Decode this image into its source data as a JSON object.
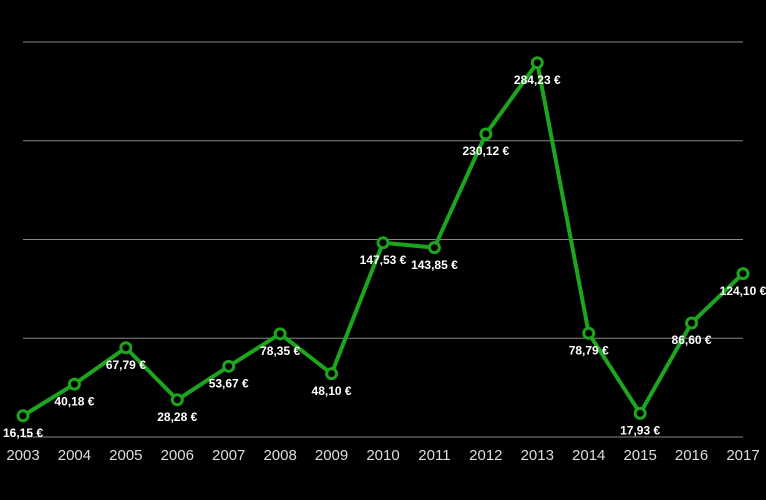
{
  "chart_data": {
    "type": "line",
    "categories": [
      "2003",
      "2004",
      "2005",
      "2006",
      "2007",
      "2008",
      "2009",
      "2010",
      "2011",
      "2012",
      "2013",
      "2014",
      "2015",
      "2016",
      "2017"
    ],
    "values": [
      16.15,
      40.18,
      67.79,
      28.28,
      53.67,
      78.35,
      48.1,
      147.53,
      143.85,
      230.12,
      284.23,
      78.79,
      17.93,
      86.6,
      124.1
    ],
    "value_labels": [
      "16,15 €",
      "40,18 €",
      "67,79 €",
      "28,28 €",
      "53,67 €",
      "78,35 €",
      "48,10 €",
      "147,53 €",
      "143,85 €",
      "230,12 €",
      "284,23 €",
      "78,79 €",
      "17,93 €",
      "86,60 €",
      "124,10 €"
    ],
    "color": "#1ea51e",
    "ylim": [
      0,
      300
    ],
    "yticks": [
      0,
      75,
      150,
      225,
      300
    ],
    "grid": true
  }
}
